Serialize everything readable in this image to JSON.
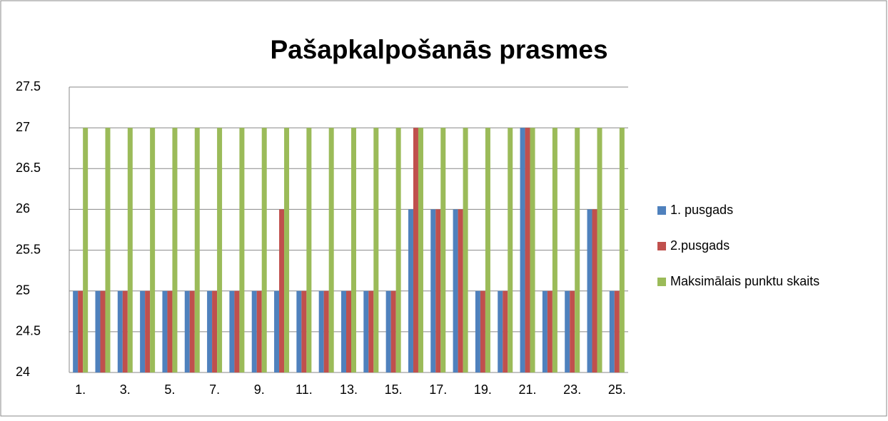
{
  "chart_data": {
    "type": "bar",
    "title": "Pašapkalpošanās prasmes",
    "categories": [
      "1.",
      null,
      "3.",
      null,
      "5.",
      null,
      "7.",
      null,
      "9.",
      null,
      "11.",
      null,
      "13.",
      null,
      "15.",
      null,
      "17.",
      null,
      "19.",
      null,
      "21.",
      null,
      "23.",
      null,
      "25."
    ],
    "series": [
      {
        "name": "1. pusgads",
        "color": "#4f81bd",
        "values": [
          25,
          25,
          25,
          25,
          25,
          25,
          25,
          25,
          25,
          25,
          25,
          25,
          25,
          25,
          25,
          26,
          26,
          26,
          25,
          25,
          27,
          25,
          25,
          26,
          25
        ]
      },
      {
        "name": "2.pusgads",
        "color": "#c0504d",
        "values": [
          25,
          25,
          25,
          25,
          25,
          25,
          25,
          25,
          25,
          26,
          25,
          25,
          25,
          25,
          25,
          27,
          26,
          26,
          25,
          25,
          27,
          25,
          25,
          26,
          25
        ]
      },
      {
        "name": "Maksimālais punktu skaits",
        "color": "#9bbb59",
        "values": [
          27,
          27,
          27,
          27,
          27,
          27,
          27,
          27,
          27,
          27,
          27,
          27,
          27,
          27,
          27,
          27,
          27,
          27,
          27,
          27,
          27,
          27,
          27,
          27,
          27
        ]
      }
    ],
    "ylim": [
      24,
      27.5
    ],
    "yticks": [
      24,
      24.5,
      25,
      25.5,
      26,
      26.5,
      27,
      27.5
    ],
    "grid": true,
    "legend": "right"
  }
}
